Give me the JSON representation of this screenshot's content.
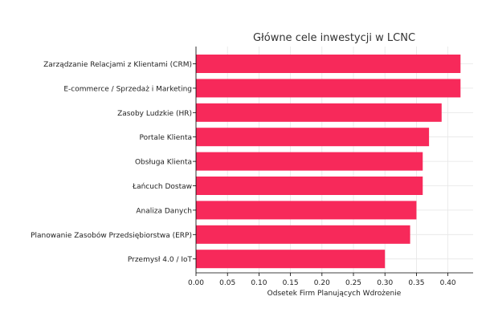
{
  "chart_data": {
    "type": "bar",
    "orientation": "horizontal",
    "title": "Główne cele inwestycji w LCNC",
    "xlabel": "Odsetek Firm Planujących Wdrożenie",
    "ylabel": "",
    "xlim": [
      0,
      0.44
    ],
    "xticks": [
      0.0,
      0.05,
      0.1,
      0.15,
      0.2,
      0.25,
      0.3,
      0.35,
      0.4
    ],
    "xtick_labels": [
      "0.00",
      "0.05",
      "0.10",
      "0.15",
      "0.20",
      "0.25",
      "0.30",
      "0.35",
      "0.40"
    ],
    "categories": [
      "Zarządzanie Relacjami z Klientami (CRM)",
      "E-commerce / Sprzedaż i Marketing",
      "Zasoby Ludzkie (HR)",
      "Portale Klienta",
      "Obsługa Klienta",
      "Łańcuch Dostaw",
      "Analiza Danych",
      "Planowanie Zasobów Przedsiębiorstwa (ERP)",
      "Przemysł 4.0 / IoT"
    ],
    "values": [
      0.42,
      0.42,
      0.39,
      0.37,
      0.36,
      0.36,
      0.35,
      0.34,
      0.3
    ],
    "grid": true,
    "bar_color": "#f7295a"
  }
}
